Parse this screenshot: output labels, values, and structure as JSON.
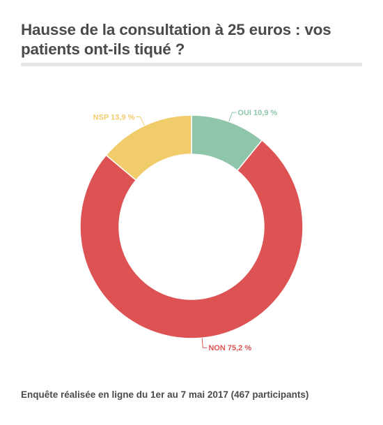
{
  "title": "Hausse de la consultation à 25 euros : vos patients ont-ils tiqué ?",
  "source": "Enquête réalisée en ligne du 1er au 7 mai 2017 (467 participants)",
  "chart_data": {
    "type": "pie",
    "donut": true,
    "slices": [
      {
        "label": "OUI 10,9 %",
        "category": "OUI",
        "value": 10.9,
        "color": "#8fc5a9"
      },
      {
        "label": "NON 75,2 %",
        "category": "NON",
        "value": 75.2,
        "color": "#dd5354"
      },
      {
        "label": "NSP 13,9 %",
        "category": "NSP",
        "value": 13.9,
        "color": "#f0cc6b"
      }
    ]
  }
}
